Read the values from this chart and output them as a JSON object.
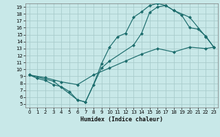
{
  "xlabel": "Humidex (Indice chaleur)",
  "bg_color": "#c8e8e8",
  "grid_color": "#a8cccc",
  "line_color": "#1a6b6b",
  "xlim": [
    -0.5,
    23.5
  ],
  "ylim": [
    4.5,
    19.5
  ],
  "xticks": [
    0,
    1,
    2,
    3,
    4,
    5,
    6,
    7,
    8,
    9,
    10,
    11,
    12,
    13,
    14,
    15,
    16,
    17,
    18,
    19,
    20,
    21,
    22,
    23
  ],
  "yticks": [
    5,
    6,
    7,
    8,
    9,
    10,
    11,
    12,
    13,
    14,
    15,
    16,
    17,
    18,
    19
  ],
  "curve1_x": [
    0,
    1,
    2,
    3,
    4,
    5,
    6,
    7,
    8,
    9,
    10,
    11,
    12,
    13,
    14,
    15,
    16,
    17,
    18,
    19,
    20,
    21,
    22,
    23
  ],
  "curve1_y": [
    9.2,
    8.7,
    8.4,
    7.8,
    7.5,
    6.8,
    5.6,
    5.3,
    7.8,
    10.8,
    13.2,
    14.7,
    15.2,
    17.5,
    18.3,
    19.2,
    19.5,
    19.2,
    18.5,
    17.8,
    16.0,
    15.8,
    14.8,
    13.2
  ],
  "curve2_x": [
    0,
    3,
    6,
    7,
    9,
    10,
    13,
    14,
    15,
    16,
    17,
    18,
    20,
    22,
    23
  ],
  "curve2_y": [
    9.2,
    8.3,
    5.6,
    5.3,
    10.2,
    11.2,
    13.5,
    15.2,
    18.2,
    19.0,
    19.2,
    18.5,
    17.5,
    14.7,
    13.2
  ],
  "curve3_x": [
    0,
    2,
    4,
    6,
    8,
    10,
    12,
    14,
    16,
    18,
    20,
    22,
    23
  ],
  "curve3_y": [
    9.2,
    8.8,
    8.2,
    7.8,
    9.2,
    10.2,
    11.2,
    12.2,
    13.0,
    12.5,
    13.2,
    13.0,
    13.2
  ]
}
